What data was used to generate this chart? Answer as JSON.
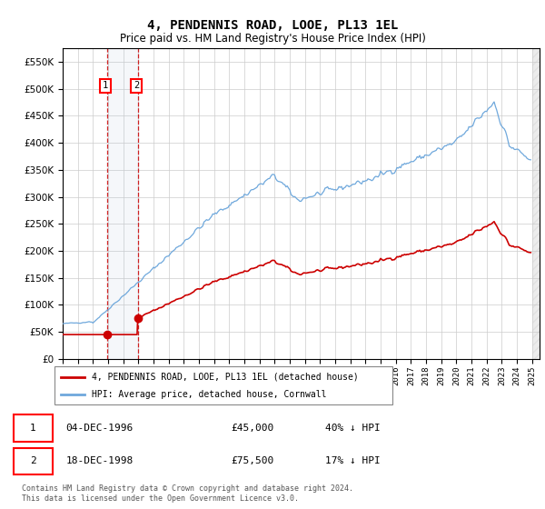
{
  "title": "4, PENDENNIS ROAD, LOOE, PL13 1EL",
  "subtitle": "Price paid vs. HM Land Registry's House Price Index (HPI)",
  "legend_line1": "4, PENDENNIS ROAD, LOOE, PL13 1EL (detached house)",
  "legend_line2": "HPI: Average price, detached house, Cornwall",
  "sale1_date": "04-DEC-1996",
  "sale1_price": 45000,
  "sale1_label": "40% ↓ HPI",
  "sale2_date": "18-DEC-1998",
  "sale2_price": 75500,
  "sale2_label": "17% ↓ HPI",
  "footnote": "Contains HM Land Registry data © Crown copyright and database right 2024.\nThis data is licensed under the Open Government Licence v3.0.",
  "hpi_color": "#6fa8dc",
  "price_color": "#cc0000",
  "ylim": [
    0,
    575000
  ],
  "xlim_start": 1994.0,
  "xlim_end": 2025.5,
  "sale1_year": 1996.917,
  "sale2_year": 1998.958,
  "hpi_start_year": 1994.0,
  "hpi_end_year": 2025.0
}
